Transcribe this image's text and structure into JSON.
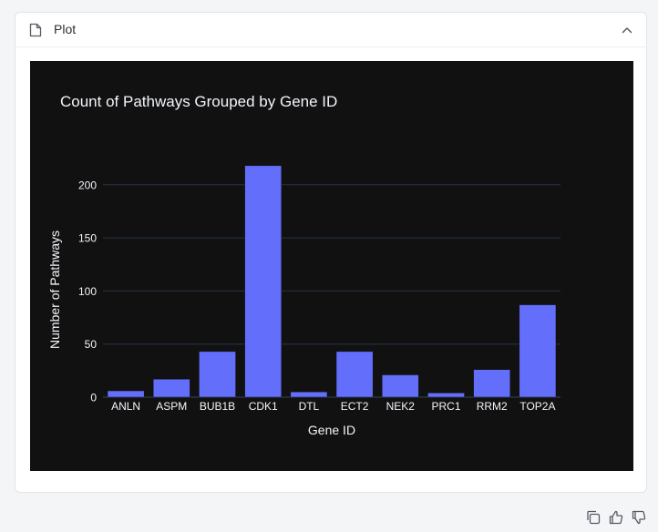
{
  "panel": {
    "title": "Plot",
    "icons": {
      "header": "document-icon",
      "collapse": "chevron-up-icon",
      "copy": "copy-icon",
      "like": "thumbs-up-icon",
      "dislike": "thumbs-down-icon"
    }
  },
  "colors": {
    "plot_background": "#111111",
    "bar": "#636efa",
    "gridline": "#283442",
    "text": "#f2f5fa"
  },
  "chart_data": {
    "type": "bar",
    "title": "Count of Pathways Grouped by Gene ID",
    "xlabel": "Gene ID",
    "ylabel": "Number of Pathways",
    "categories": [
      "ANLN",
      "ASPM",
      "BUB1B",
      "CDK1",
      "DTL",
      "ECT2",
      "NEK2",
      "PRC1",
      "RRM2",
      "TOP2A"
    ],
    "values": [
      6,
      17,
      43,
      218,
      5,
      43,
      21,
      4,
      26,
      87
    ],
    "ylim": [
      0,
      235
    ],
    "yticks": [
      0,
      50,
      100,
      150,
      200
    ],
    "grid": true,
    "legend": "none"
  }
}
